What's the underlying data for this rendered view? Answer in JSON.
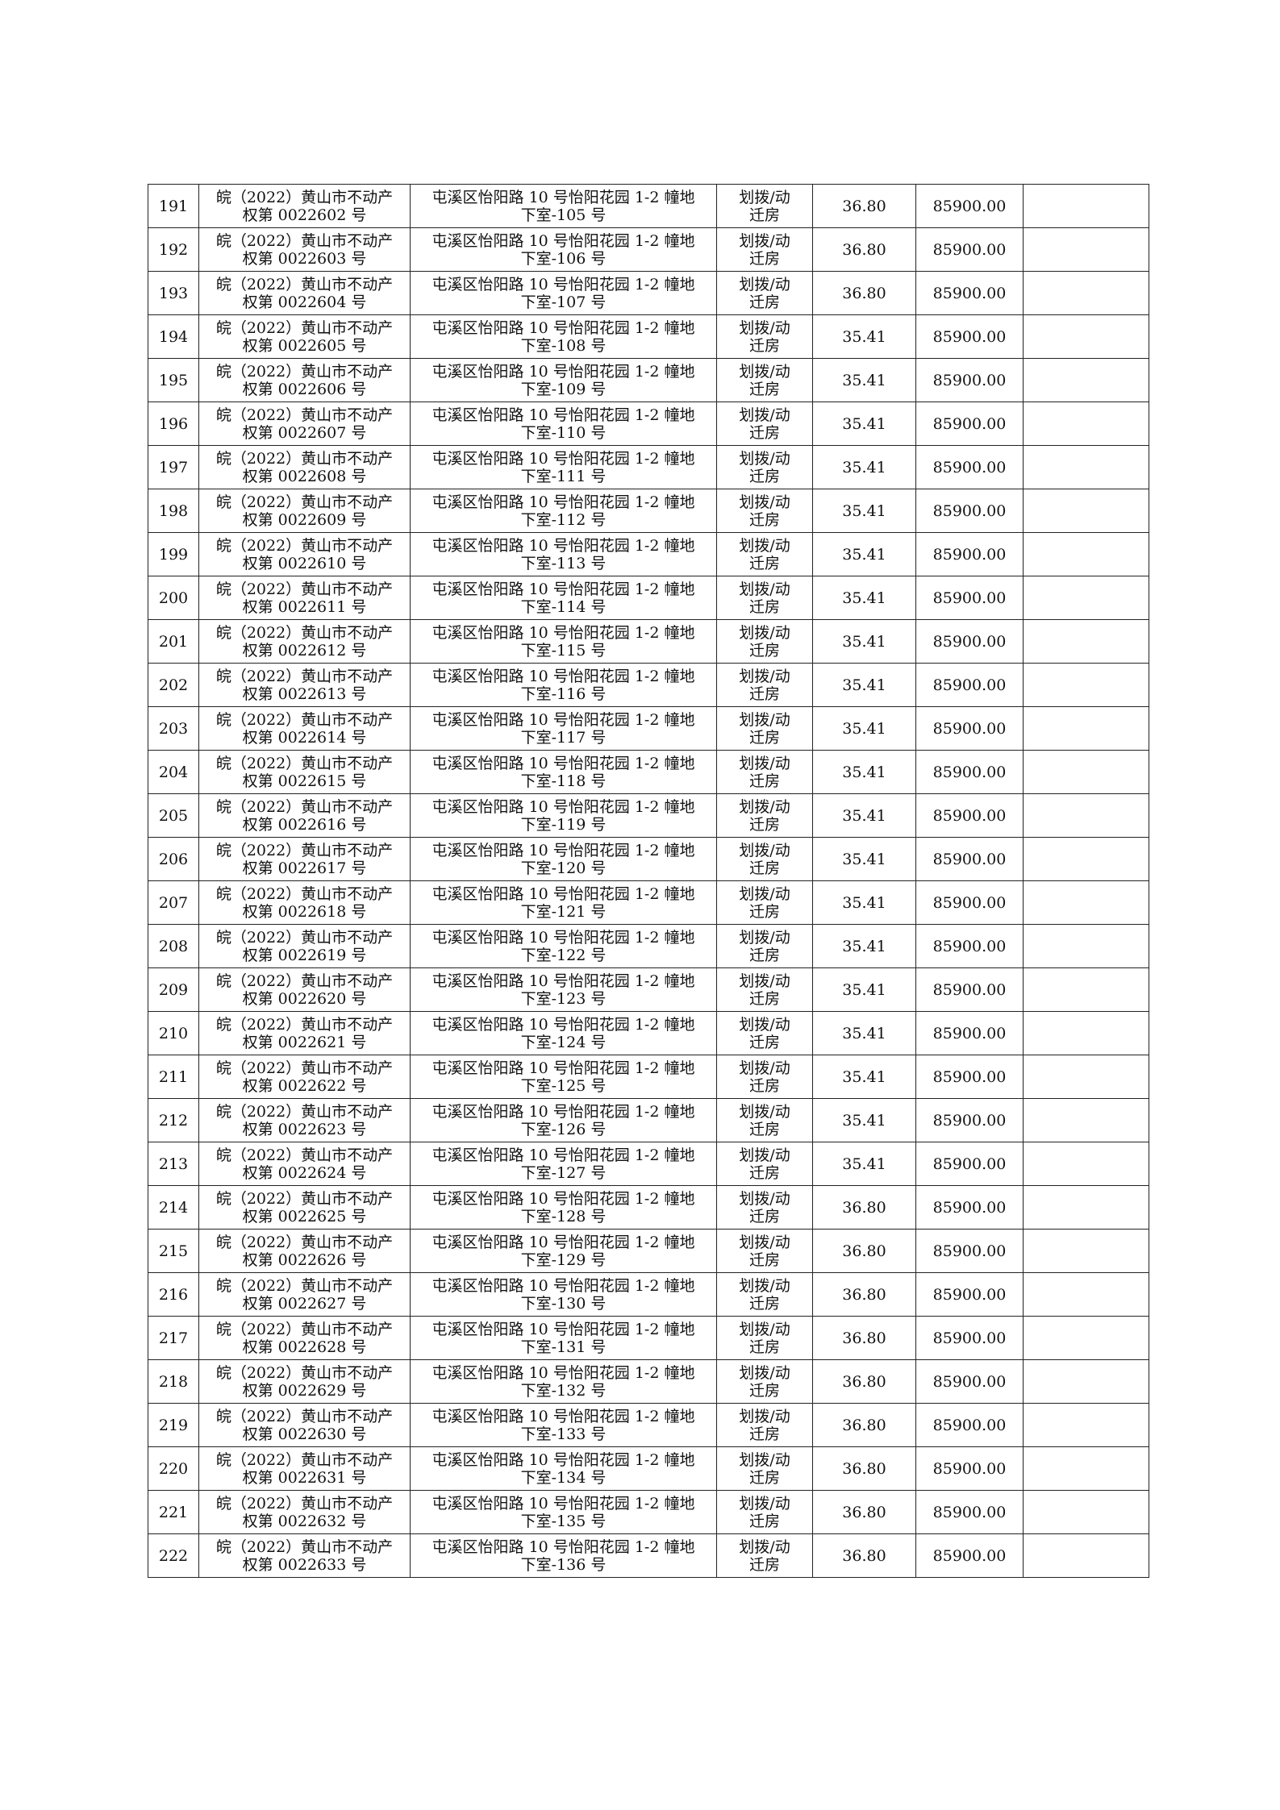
{
  "rows": [
    {
      "no": "191",
      "cert_line1": "皖（2022）黄山市不动产",
      "cert_line2": "权第 0022602 号",
      "addr_line1": "屯溪区怡阳路 10 号怡阳花园 1-2 幢地",
      "addr_line2": "下室-105 号",
      "type_line1": "划拨/动",
      "type_line2": "迁房",
      "area": "36.80",
      "price": "85900.00",
      "note": ""
    },
    {
      "no": "192",
      "cert_line1": "皖（2022）黄山市不动产",
      "cert_line2": "权第 0022603 号",
      "addr_line1": "屯溪区怡阳路 10 号怡阳花园 1-2 幢地",
      "addr_line2": "下室-106 号",
      "type_line1": "划拨/动",
      "type_line2": "迁房",
      "area": "36.80",
      "price": "85900.00",
      "note": ""
    },
    {
      "no": "193",
      "cert_line1": "皖（2022）黄山市不动产",
      "cert_line2": "权第 0022604 号",
      "addr_line1": "屯溪区怡阳路 10 号怡阳花园 1-2 幢地",
      "addr_line2": "下室-107 号",
      "type_line1": "划拨/动",
      "type_line2": "迁房",
      "area": "36.80",
      "price": "85900.00",
      "note": ""
    },
    {
      "no": "194",
      "cert_line1": "皖（2022）黄山市不动产",
      "cert_line2": "权第 0022605 号",
      "addr_line1": "屯溪区怡阳路 10 号怡阳花园 1-2 幢地",
      "addr_line2": "下室-108 号",
      "type_line1": "划拨/动",
      "type_line2": "迁房",
      "area": "35.41",
      "price": "85900.00",
      "note": ""
    },
    {
      "no": "195",
      "cert_line1": "皖（2022）黄山市不动产",
      "cert_line2": "权第 0022606 号",
      "addr_line1": "屯溪区怡阳路 10 号怡阳花园 1-2 幢地",
      "addr_line2": "下室-109 号",
      "type_line1": "划拨/动",
      "type_line2": "迁房",
      "area": "35.41",
      "price": "85900.00",
      "note": ""
    },
    {
      "no": "196",
      "cert_line1": "皖（2022）黄山市不动产",
      "cert_line2": "权第 0022607 号",
      "addr_line1": "屯溪区怡阳路 10 号怡阳花园 1-2 幢地",
      "addr_line2": "下室-110 号",
      "type_line1": "划拨/动",
      "type_line2": "迁房",
      "area": "35.41",
      "price": "85900.00",
      "note": ""
    },
    {
      "no": "197",
      "cert_line1": "皖（2022）黄山市不动产",
      "cert_line2": "权第 0022608 号",
      "addr_line1": "屯溪区怡阳路 10 号怡阳花园 1-2 幢地",
      "addr_line2": "下室-111 号",
      "type_line1": "划拨/动",
      "type_line2": "迁房",
      "area": "35.41",
      "price": "85900.00",
      "note": ""
    },
    {
      "no": "198",
      "cert_line1": "皖（2022）黄山市不动产",
      "cert_line2": "权第 0022609 号",
      "addr_line1": "屯溪区怡阳路 10 号怡阳花园 1-2 幢地",
      "addr_line2": "下室-112 号",
      "type_line1": "划拨/动",
      "type_line2": "迁房",
      "area": "35.41",
      "price": "85900.00",
      "note": ""
    },
    {
      "no": "199",
      "cert_line1": "皖（2022）黄山市不动产",
      "cert_line2": "权第 0022610 号",
      "addr_line1": "屯溪区怡阳路 10 号怡阳花园 1-2 幢地",
      "addr_line2": "下室-113 号",
      "type_line1": "划拨/动",
      "type_line2": "迁房",
      "area": "35.41",
      "price": "85900.00",
      "note": ""
    },
    {
      "no": "200",
      "cert_line1": "皖（2022）黄山市不动产",
      "cert_line2": "权第 0022611 号",
      "addr_line1": "屯溪区怡阳路 10 号怡阳花园 1-2 幢地",
      "addr_line2": "下室-114 号",
      "type_line1": "划拨/动",
      "type_line2": "迁房",
      "area": "35.41",
      "price": "85900.00",
      "note": ""
    },
    {
      "no": "201",
      "cert_line1": "皖（2022）黄山市不动产",
      "cert_line2": "权第 0022612 号",
      "addr_line1": "屯溪区怡阳路 10 号怡阳花园 1-2 幢地",
      "addr_line2": "下室-115 号",
      "type_line1": "划拨/动",
      "type_line2": "迁房",
      "area": "35.41",
      "price": "85900.00",
      "note": ""
    },
    {
      "no": "202",
      "cert_line1": "皖（2022）黄山市不动产",
      "cert_line2": "权第 0022613 号",
      "addr_line1": "屯溪区怡阳路 10 号怡阳花园 1-2 幢地",
      "addr_line2": "下室-116 号",
      "type_line1": "划拨/动",
      "type_line2": "迁房",
      "area": "35.41",
      "price": "85900.00",
      "note": ""
    },
    {
      "no": "203",
      "cert_line1": "皖（2022）黄山市不动产",
      "cert_line2": "权第 0022614 号",
      "addr_line1": "屯溪区怡阳路 10 号怡阳花园 1-2 幢地",
      "addr_line2": "下室-117 号",
      "type_line1": "划拨/动",
      "type_line2": "迁房",
      "area": "35.41",
      "price": "85900.00",
      "note": ""
    },
    {
      "no": "204",
      "cert_line1": "皖（2022）黄山市不动产",
      "cert_line2": "权第 0022615 号",
      "addr_line1": "屯溪区怡阳路 10 号怡阳花园 1-2 幢地",
      "addr_line2": "下室-118 号",
      "type_line1": "划拨/动",
      "type_line2": "迁房",
      "area": "35.41",
      "price": "85900.00",
      "note": ""
    },
    {
      "no": "205",
      "cert_line1": "皖（2022）黄山市不动产",
      "cert_line2": "权第 0022616 号",
      "addr_line1": "屯溪区怡阳路 10 号怡阳花园 1-2 幢地",
      "addr_line2": "下室-119 号",
      "type_line1": "划拨/动",
      "type_line2": "迁房",
      "area": "35.41",
      "price": "85900.00",
      "note": ""
    },
    {
      "no": "206",
      "cert_line1": "皖（2022）黄山市不动产",
      "cert_line2": "权第 0022617 号",
      "addr_line1": "屯溪区怡阳路 10 号怡阳花园 1-2 幢地",
      "addr_line2": "下室-120 号",
      "type_line1": "划拨/动",
      "type_line2": "迁房",
      "area": "35.41",
      "price": "85900.00",
      "note": ""
    },
    {
      "no": "207",
      "cert_line1": "皖（2022）黄山市不动产",
      "cert_line2": "权第 0022618 号",
      "addr_line1": "屯溪区怡阳路 10 号怡阳花园 1-2 幢地",
      "addr_line2": "下室-121 号",
      "type_line1": "划拨/动",
      "type_line2": "迁房",
      "area": "35.41",
      "price": "85900.00",
      "note": ""
    },
    {
      "no": "208",
      "cert_line1": "皖（2022）黄山市不动产",
      "cert_line2": "权第 0022619 号",
      "addr_line1": "屯溪区怡阳路 10 号怡阳花园 1-2 幢地",
      "addr_line2": "下室-122 号",
      "type_line1": "划拨/动",
      "type_line2": "迁房",
      "area": "35.41",
      "price": "85900.00",
      "note": ""
    },
    {
      "no": "209",
      "cert_line1": "皖（2022）黄山市不动产",
      "cert_line2": "权第 0022620 号",
      "addr_line1": "屯溪区怡阳路 10 号怡阳花园 1-2 幢地",
      "addr_line2": "下室-123 号",
      "type_line1": "划拨/动",
      "type_line2": "迁房",
      "area": "35.41",
      "price": "85900.00",
      "note": ""
    },
    {
      "no": "210",
      "cert_line1": "皖（2022）黄山市不动产",
      "cert_line2": "权第 0022621 号",
      "addr_line1": "屯溪区怡阳路 10 号怡阳花园 1-2 幢地",
      "addr_line2": "下室-124 号",
      "type_line1": "划拨/动",
      "type_line2": "迁房",
      "area": "35.41",
      "price": "85900.00",
      "note": ""
    },
    {
      "no": "211",
      "cert_line1": "皖（2022）黄山市不动产",
      "cert_line2": "权第 0022622 号",
      "addr_line1": "屯溪区怡阳路 10 号怡阳花园 1-2 幢地",
      "addr_line2": "下室-125 号",
      "type_line1": "划拨/动",
      "type_line2": "迁房",
      "area": "35.41",
      "price": "85900.00",
      "note": ""
    },
    {
      "no": "212",
      "cert_line1": "皖（2022）黄山市不动产",
      "cert_line2": "权第 0022623 号",
      "addr_line1": "屯溪区怡阳路 10 号怡阳花园 1-2 幢地",
      "addr_line2": "下室-126 号",
      "type_line1": "划拨/动",
      "type_line2": "迁房",
      "area": "35.41",
      "price": "85900.00",
      "note": ""
    },
    {
      "no": "213",
      "cert_line1": "皖（2022）黄山市不动产",
      "cert_line2": "权第 0022624 号",
      "addr_line1": "屯溪区怡阳路 10 号怡阳花园 1-2 幢地",
      "addr_line2": "下室-127 号",
      "type_line1": "划拨/动",
      "type_line2": "迁房",
      "area": "35.41",
      "price": "85900.00",
      "note": ""
    },
    {
      "no": "214",
      "cert_line1": "皖（2022）黄山市不动产",
      "cert_line2": "权第 0022625 号",
      "addr_line1": "屯溪区怡阳路 10 号怡阳花园 1-2 幢地",
      "addr_line2": "下室-128 号",
      "type_line1": "划拨/动",
      "type_line2": "迁房",
      "area": "36.80",
      "price": "85900.00",
      "note": ""
    },
    {
      "no": "215",
      "cert_line1": "皖（2022）黄山市不动产",
      "cert_line2": "权第 0022626 号",
      "addr_line1": "屯溪区怡阳路 10 号怡阳花园 1-2 幢地",
      "addr_line2": "下室-129 号",
      "type_line1": "划拨/动",
      "type_line2": "迁房",
      "area": "36.80",
      "price": "85900.00",
      "note": ""
    },
    {
      "no": "216",
      "cert_line1": "皖（2022）黄山市不动产",
      "cert_line2": "权第 0022627 号",
      "addr_line1": "屯溪区怡阳路 10 号怡阳花园 1-2 幢地",
      "addr_line2": "下室-130 号",
      "type_line1": "划拨/动",
      "type_line2": "迁房",
      "area": "36.80",
      "price": "85900.00",
      "note": ""
    },
    {
      "no": "217",
      "cert_line1": "皖（2022）黄山市不动产",
      "cert_line2": "权第 0022628 号",
      "addr_line1": "屯溪区怡阳路 10 号怡阳花园 1-2 幢地",
      "addr_line2": "下室-131 号",
      "type_line1": "划拨/动",
      "type_line2": "迁房",
      "area": "36.80",
      "price": "85900.00",
      "note": ""
    },
    {
      "no": "218",
      "cert_line1": "皖（2022）黄山市不动产",
      "cert_line2": "权第 0022629 号",
      "addr_line1": "屯溪区怡阳路 10 号怡阳花园 1-2 幢地",
      "addr_line2": "下室-132 号",
      "type_line1": "划拨/动",
      "type_line2": "迁房",
      "area": "36.80",
      "price": "85900.00",
      "note": ""
    },
    {
      "no": "219",
      "cert_line1": "皖（2022）黄山市不动产",
      "cert_line2": "权第 0022630 号",
      "addr_line1": "屯溪区怡阳路 10 号怡阳花园 1-2 幢地",
      "addr_line2": "下室-133 号",
      "type_line1": "划拨/动",
      "type_line2": "迁房",
      "area": "36.80",
      "price": "85900.00",
      "note": ""
    },
    {
      "no": "220",
      "cert_line1": "皖（2022）黄山市不动产",
      "cert_line2": "权第 0022631 号",
      "addr_line1": "屯溪区怡阳路 10 号怡阳花园 1-2 幢地",
      "addr_line2": "下室-134 号",
      "type_line1": "划拨/动",
      "type_line2": "迁房",
      "area": "36.80",
      "price": "85900.00",
      "note": ""
    },
    {
      "no": "221",
      "cert_line1": "皖（2022）黄山市不动产",
      "cert_line2": "权第 0022632 号",
      "addr_line1": "屯溪区怡阳路 10 号怡阳花园 1-2 幢地",
      "addr_line2": "下室-135 号",
      "type_line1": "划拨/动",
      "type_line2": "迁房",
      "area": "36.80",
      "price": "85900.00",
      "note": ""
    },
    {
      "no": "222",
      "cert_line1": "皖（2022）黄山市不动产",
      "cert_line2": "权第 0022633 号",
      "addr_line1": "屯溪区怡阳路 10 号怡阳花园 1-2 幢地",
      "addr_line2": "下室-136 号",
      "type_line1": "划拨/动",
      "type_line2": "迁房",
      "area": "36.80",
      "price": "85900.00",
      "note": ""
    }
  ]
}
